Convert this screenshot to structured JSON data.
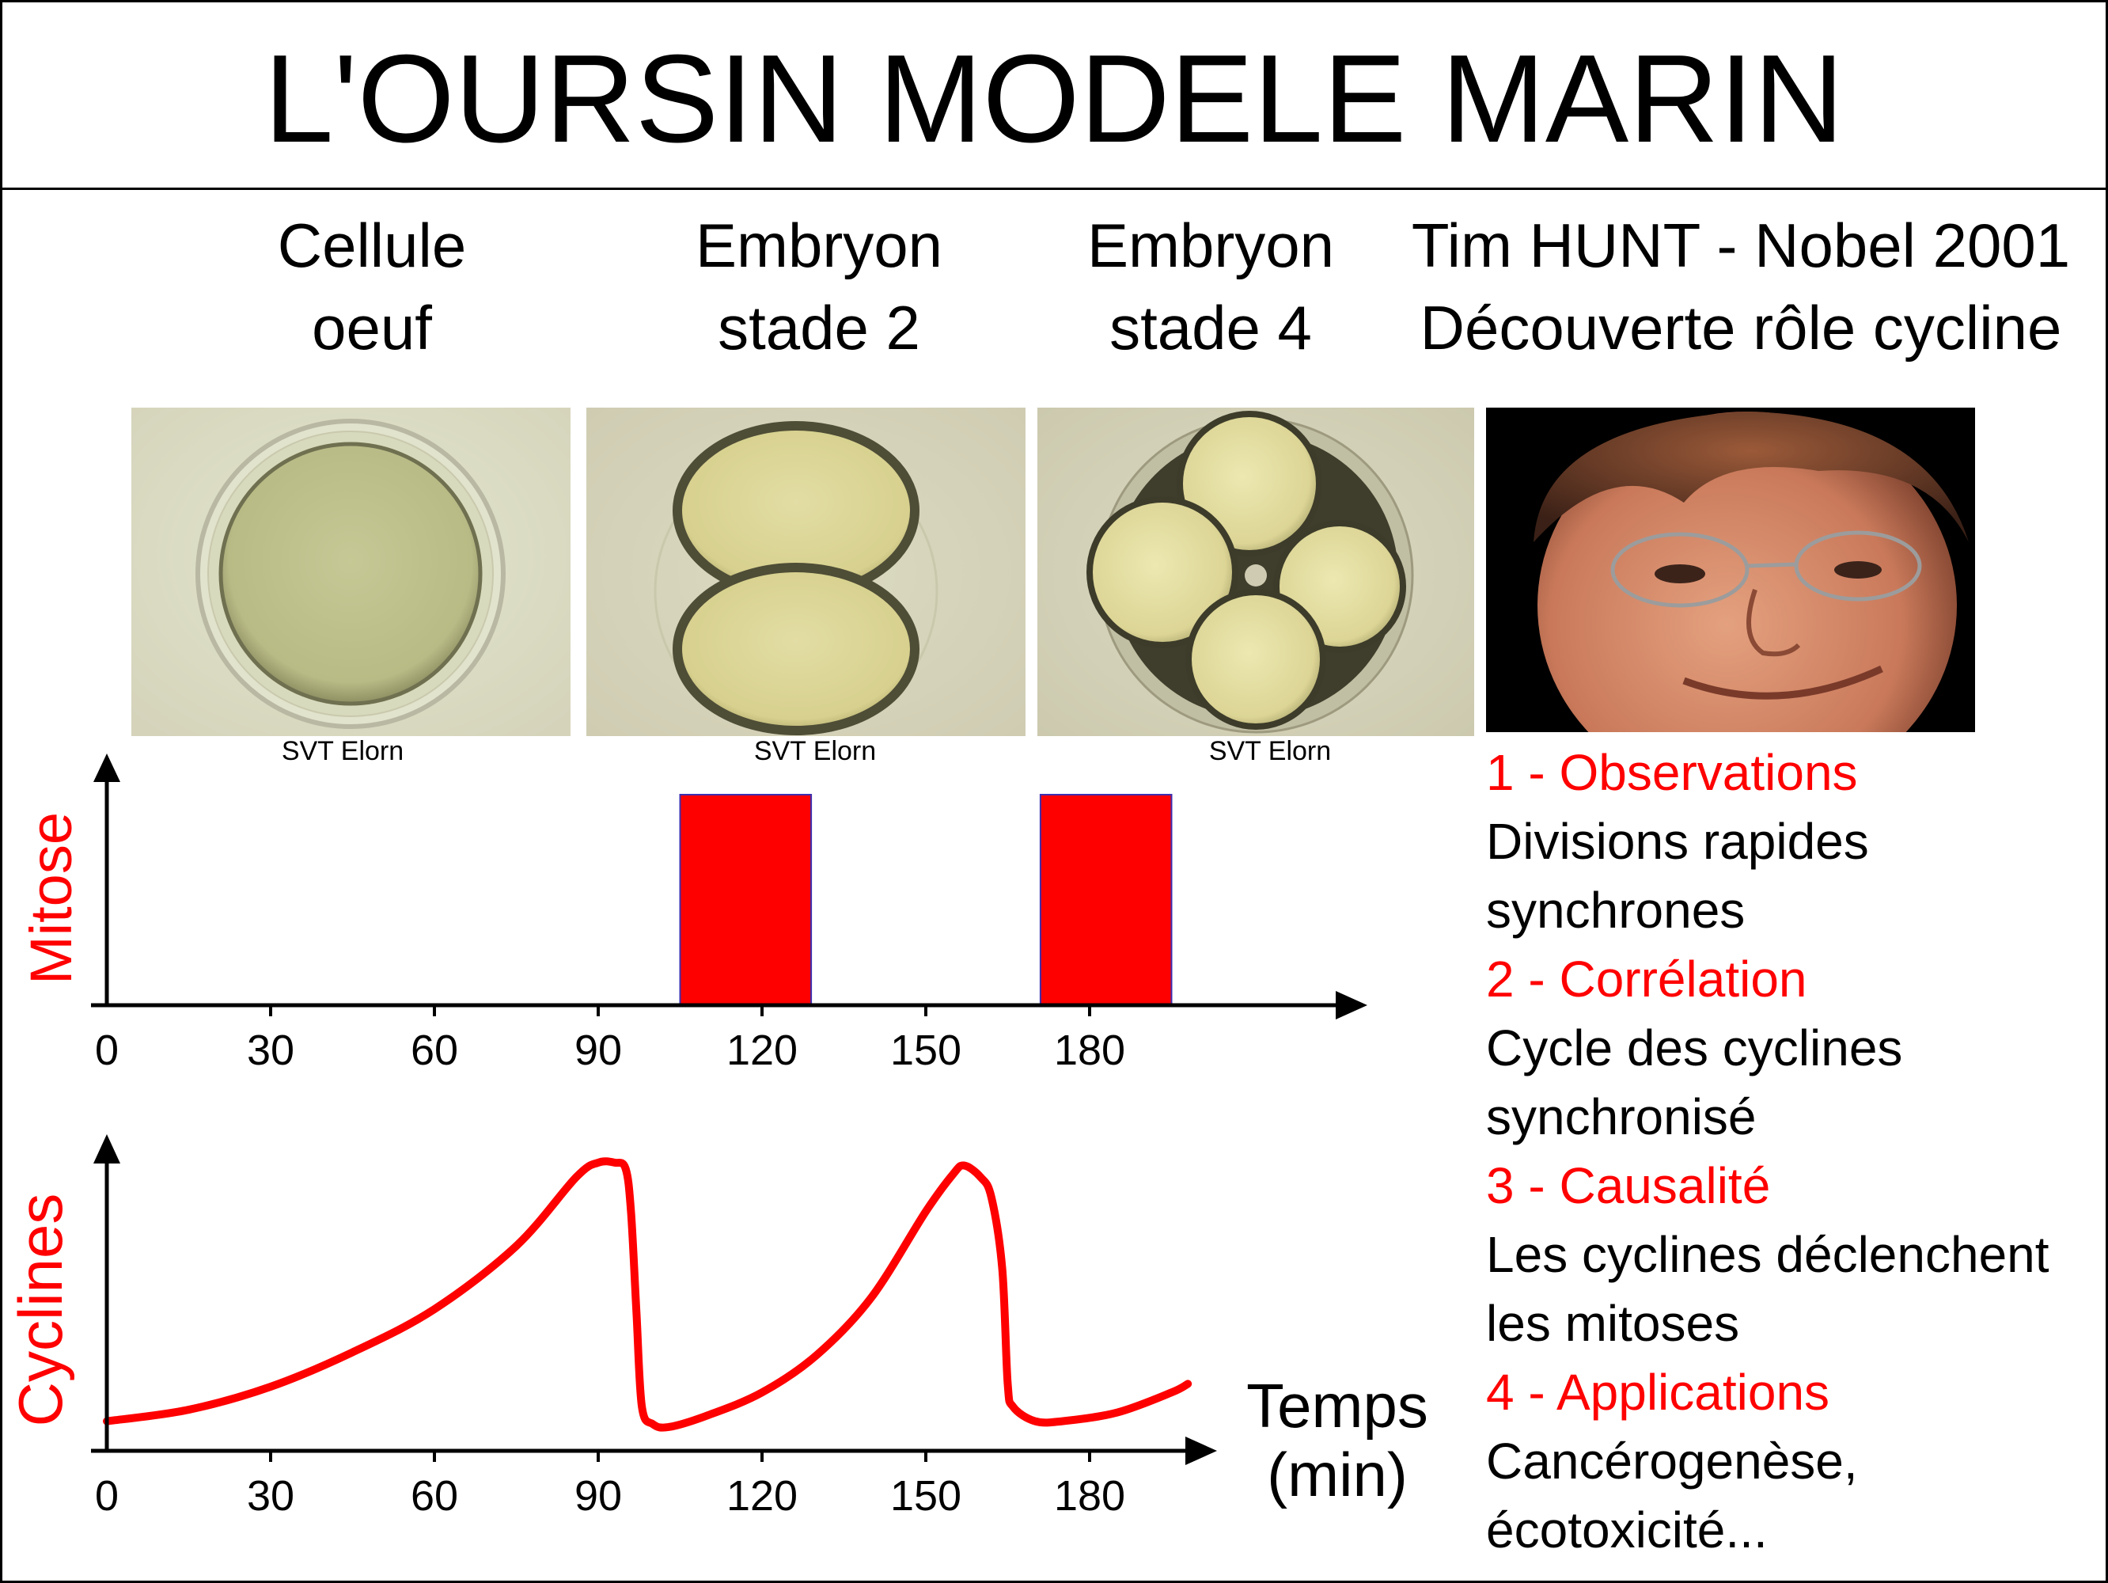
{
  "title": "L'OURSIN MODELE MARIN",
  "headings": {
    "egg": [
      "Cellule",
      "oeuf"
    ],
    "stage2": [
      "Embryon",
      "stade 2"
    ],
    "stage4": [
      "Embryon",
      "stade 4"
    ],
    "hunt": [
      "Tim HUNT - Nobel 2001",
      "Découverte rôle cycline"
    ]
  },
  "credits": [
    "SVT Elorn",
    "SVT Elorn",
    "SVT Elorn"
  ],
  "sidebar": [
    {
      "heading": "1 - Observations",
      "lines": [
        "Divisions rapides",
        "synchrones"
      ]
    },
    {
      "heading": "2 - Corrélation",
      "lines": [
        "Cycle des cyclines",
        "synchronisé"
      ]
    },
    {
      "heading": "3 - Causalité",
      "lines": [
        "Les cyclines déclenchent",
        "les mitoses"
      ]
    },
    {
      "heading": "4 - Applications",
      "lines": [
        "Cancérogenèse,",
        "écotoxicité..."
      ]
    }
  ],
  "colors": {
    "accent": "#ff0000",
    "mitose_bar_edge": "#3d2fb0"
  },
  "chart_data": [
    {
      "type": "bar",
      "ylabel": "Mitose",
      "x_ticks": [
        0,
        30,
        60,
        90,
        120,
        150,
        180
      ],
      "intervals": [
        {
          "start": 105,
          "end": 129
        },
        {
          "start": 171,
          "end": 195
        }
      ],
      "xlim": [
        0,
        230
      ]
    },
    {
      "type": "line",
      "ylabel": "Cyclines",
      "xlabel": [
        "Temps",
        "(min)"
      ],
      "x_ticks": [
        0,
        30,
        60,
        90,
        120,
        150,
        180
      ],
      "xlim": [
        0,
        200
      ],
      "points": [
        [
          0,
          0.07
        ],
        [
          15,
          0.11
        ],
        [
          30,
          0.19
        ],
        [
          45,
          0.31
        ],
        [
          60,
          0.46
        ],
        [
          75,
          0.68
        ],
        [
          86,
          0.92
        ],
        [
          90,
          0.97
        ],
        [
          93,
          0.97
        ],
        [
          95,
          0.95
        ],
        [
          96,
          0.8
        ],
        [
          97,
          0.45
        ],
        [
          98,
          0.12
        ],
        [
          100,
          0.06
        ],
        [
          103,
          0.05
        ],
        [
          110,
          0.09
        ],
        [
          120,
          0.17
        ],
        [
          130,
          0.3
        ],
        [
          140,
          0.5
        ],
        [
          150,
          0.8
        ],
        [
          155,
          0.93
        ],
        [
          157,
          0.96
        ],
        [
          160,
          0.92
        ],
        [
          162,
          0.85
        ],
        [
          164,
          0.6
        ],
        [
          165,
          0.2
        ],
        [
          166,
          0.12
        ],
        [
          170,
          0.07
        ],
        [
          175,
          0.07
        ],
        [
          185,
          0.1
        ],
        [
          195,
          0.17
        ],
        [
          198,
          0.2
        ]
      ]
    }
  ]
}
